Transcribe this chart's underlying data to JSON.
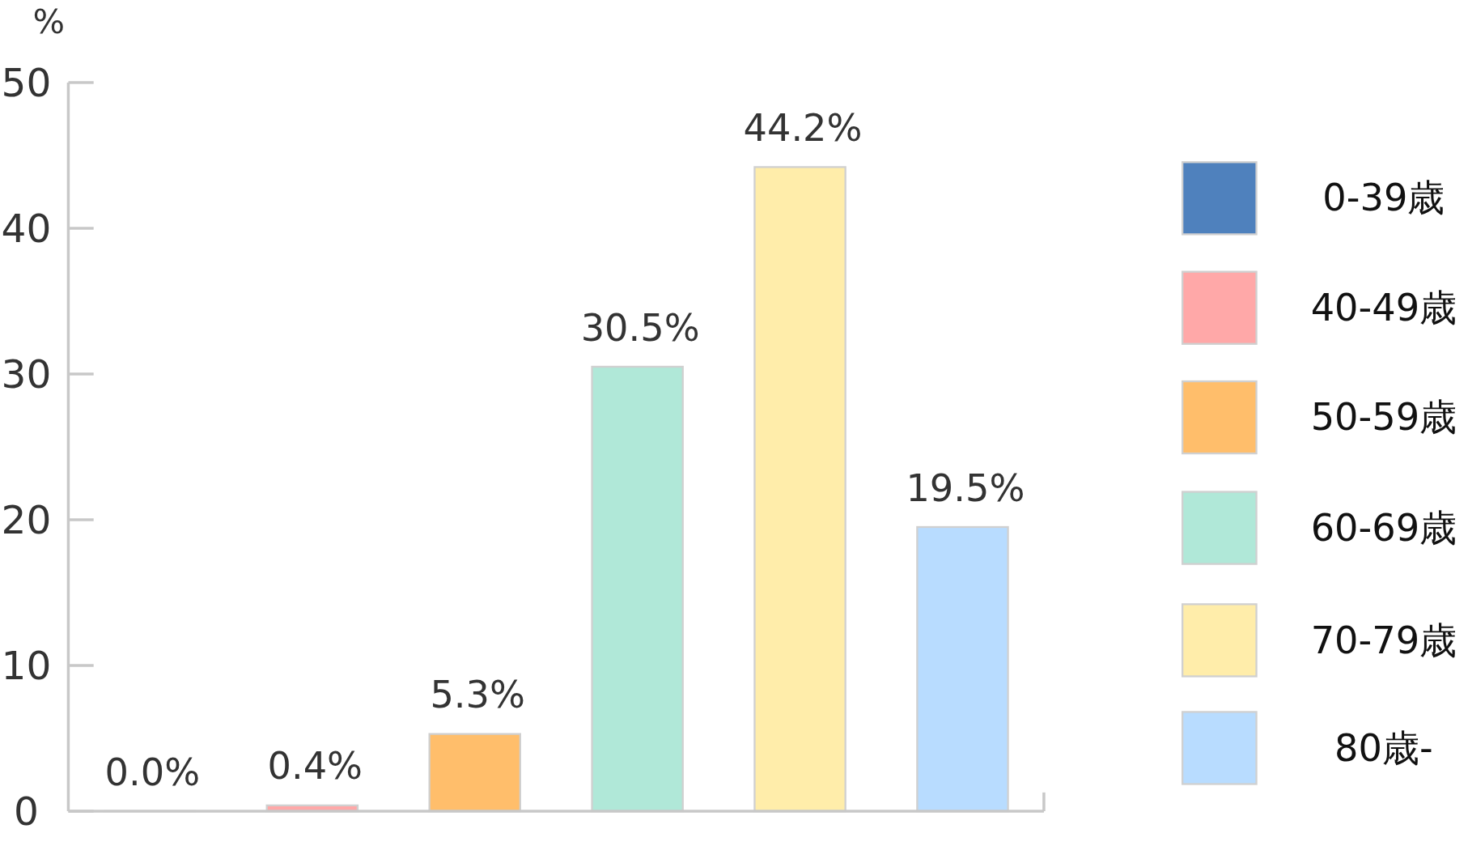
{
  "chart_data": {
    "type": "bar",
    "ylabel": "%",
    "categories": [
      null,
      null,
      null,
      null,
      null,
      null
    ],
    "ylim": [
      0,
      50
    ],
    "yticks": [
      0,
      10,
      20,
      30,
      40,
      50
    ],
    "legend": "right",
    "grid": false,
    "series": [
      {
        "name": "0-39歳",
        "color": "#4f81bd",
        "values": [
          0.0,
          null,
          null,
          null,
          null,
          null
        ],
        "value_labels": [
          "0.0%",
          null,
          null,
          null,
          null,
          null
        ]
      },
      {
        "name": "40-49歳",
        "color": "#ffa8a8",
        "values": [
          null,
          0.4,
          null,
          null,
          null,
          null
        ],
        "value_labels": [
          null,
          "0.4%",
          null,
          null,
          null,
          null
        ]
      },
      {
        "name": "50-59歳",
        "color": "#ffbe6b",
        "values": [
          null,
          null,
          5.3,
          null,
          null,
          null
        ],
        "value_labels": [
          null,
          null,
          "5.3%",
          null,
          null,
          null
        ]
      },
      {
        "name": "60-69歳",
        "color": "#b0e8d8",
        "values": [
          null,
          null,
          null,
          30.5,
          null,
          null
        ],
        "value_labels": [
          null,
          null,
          null,
          "30.5%",
          null,
          null
        ]
      },
      {
        "name": "70-79歳",
        "color": "#ffedaa",
        "values": [
          null,
          null,
          null,
          null,
          44.2,
          null
        ],
        "value_labels": [
          null,
          null,
          null,
          null,
          "44.2%",
          null
        ]
      },
      {
        "name": "80歳-",
        "color": "#b8dcff",
        "values": [
          null,
          null,
          null,
          null,
          null,
          19.5
        ],
        "value_labels": [
          null,
          null,
          null,
          null,
          null,
          "19.5%"
        ]
      }
    ]
  }
}
